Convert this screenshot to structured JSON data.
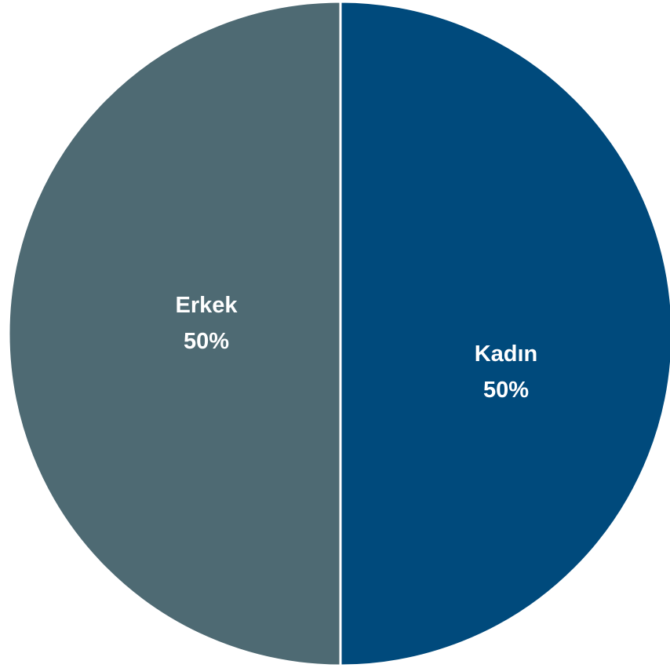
{
  "chart_data": {
    "type": "pie",
    "title": "",
    "slices": [
      {
        "label": "Kadın",
        "value": 50,
        "value_label": "50%",
        "color": "#004a7c"
      },
      {
        "label": "Erkek",
        "value": 50,
        "value_label": "50%",
        "color": "#4e6a73"
      }
    ],
    "start_angle": "12 o'clock",
    "direction": "clockwise",
    "slice_border_color": "#ffffff",
    "legend": "none"
  }
}
